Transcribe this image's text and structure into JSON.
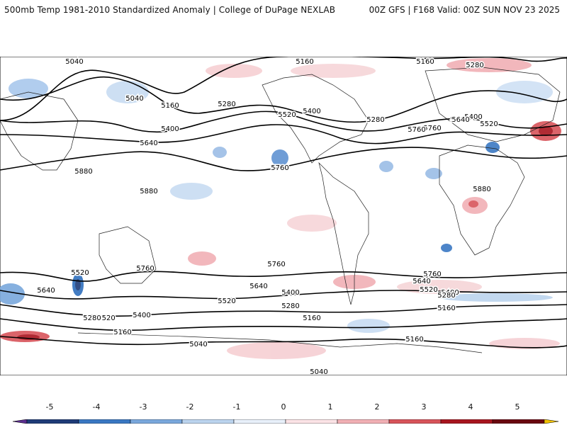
{
  "header": {
    "title_left": "500mb Temp 1981-2010 Standardized Anomaly | College of DuPage NEXLAB",
    "title_right": "00Z GFS | F168 Valid: 00Z SUN NOV 23 2025"
  },
  "contour_labels": [
    "5040",
    "5160",
    "5160",
    "5280",
    "5040",
    "5280",
    "5160",
    "5400",
    "5520",
    "5400",
    "5640",
    "5280",
    "5640",
    "5520",
    "5400",
    "5760",
    "5880",
    "5880",
    "5760",
    "5640",
    "5760",
    "5880",
    "5520",
    "5760",
    "5760",
    "5640",
    "5400",
    "5520",
    "5280",
    "5160",
    "5040",
    "5640",
    "5520",
    "5400",
    "5280",
    "5160",
    "5760",
    "5640",
    "5520",
    "5400",
    "5280",
    "5160",
    "5160",
    "5160",
    "5040"
  ],
  "legend": {
    "ticks": [
      "-5",
      "-4",
      "-3",
      "-2",
      "-1",
      "0",
      "1",
      "2",
      "3",
      "4",
      "5"
    ],
    "colors": [
      "#5b2f8f",
      "#1f3c78",
      "#3a78c3",
      "#7aa8dc",
      "#bcd4ee",
      "#e8f0fa",
      "#fbe3e6",
      "#f1b0b5",
      "#d8545a",
      "#a8151f",
      "#6a0710",
      "#f2c200"
    ]
  }
}
